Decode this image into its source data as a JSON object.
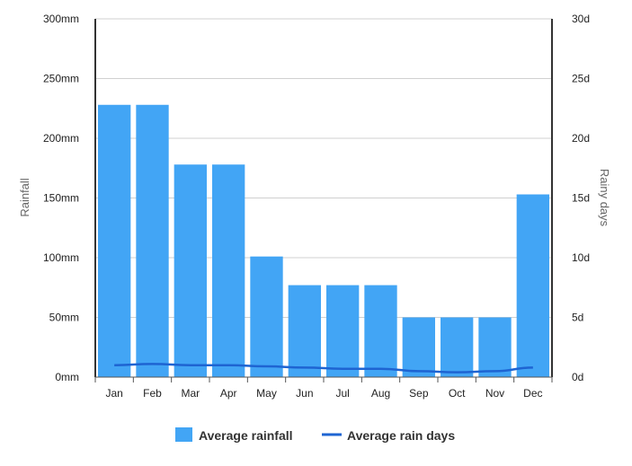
{
  "chart_data": {
    "type": "bar",
    "categories": [
      "Jan",
      "Feb",
      "Mar",
      "Apr",
      "May",
      "Jun",
      "Jul",
      "Aug",
      "Sep",
      "Oct",
      "Nov",
      "Dec"
    ],
    "series": [
      {
        "name": "Average rainfall",
        "kind": "bar",
        "axis": "left",
        "color": "#42a5f5",
        "values": [
          228,
          228,
          178,
          178,
          101,
          77,
          77,
          77,
          50,
          50,
          50,
          153
        ]
      },
      {
        "name": "Average rain days",
        "kind": "line",
        "axis": "right",
        "color": "#1e64d2",
        "values": [
          1.0,
          1.1,
          1.0,
          1.0,
          0.9,
          0.8,
          0.7,
          0.7,
          0.5,
          0.4,
          0.5,
          0.8
        ]
      }
    ],
    "ylabel": "Rainfall",
    "ylabel_right": "Rainy days",
    "ylim": [
      0,
      300
    ],
    "ylim_right": [
      0,
      30
    ],
    "yticks": [
      "0mm",
      "50mm",
      "100mm",
      "150mm",
      "200mm",
      "250mm",
      "300mm"
    ],
    "yticks_right": [
      "0d",
      "5d",
      "10d",
      "15d",
      "20d",
      "25d",
      "30d"
    ],
    "grid": true,
    "legend_position": "bottom"
  }
}
